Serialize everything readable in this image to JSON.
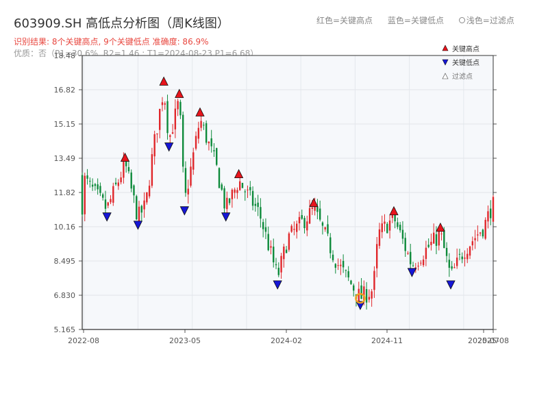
{
  "header": {
    "title": "603909.SH 高低点分析图（周K线图）",
    "result_line": "识别结果: 8个关键高点, 9个关键低点   准确度: 86.9%",
    "params_line": "优质：否（P1=30.6%, R2=1.46 ; T1=2024-08-23 P1=6.68）",
    "legend_high": "红色=关键高点",
    "legend_low": "蓝色=关键低点",
    "legend_filtered": "浅色=过滤点"
  },
  "chart_data": {
    "type": "candlestick",
    "ylim": [
      5.165,
      18.48
    ],
    "yticks": [
      "5.165",
      "6.830",
      "8.495",
      "10.16",
      "11.82",
      "13.49",
      "15.15",
      "16.82",
      "18.48"
    ],
    "xticks": [
      "2022-08",
      "2023-05",
      "2024-02",
      "2024-11",
      "2025-07",
      "2025-08"
    ],
    "x_range": [
      "2022-08-01",
      "2025-08-18"
    ],
    "legend": [
      "关键高点",
      "关键低点",
      "过滤点"
    ],
    "legend_position": "top-right",
    "colors": {
      "up": "#e0262a",
      "down": "#0d8a3a",
      "high_marker": "#e8141c",
      "low_marker": "#1616d6",
      "highlight": "#f0a020"
    },
    "price_anchors": [
      {
        "date": "2022-08-05",
        "price": 12.5
      },
      {
        "date": "2022-10-07",
        "price": 11.0
      },
      {
        "date": "2022-11-25",
        "price": 13.2
      },
      {
        "date": "2022-12-30",
        "price": 10.6
      },
      {
        "date": "2023-01-20",
        "price": 11.2
      },
      {
        "date": "2023-02-10",
        "price": 14.0
      },
      {
        "date": "2023-03-10",
        "price": 16.9
      },
      {
        "date": "2023-03-24",
        "price": 14.4
      },
      {
        "date": "2023-04-21",
        "price": 16.3
      },
      {
        "date": "2023-05-05",
        "price": 11.3
      },
      {
        "date": "2023-06-16",
        "price": 15.4
      },
      {
        "date": "2023-07-28",
        "price": 13.2
      },
      {
        "date": "2023-08-25",
        "price": 11.0
      },
      {
        "date": "2023-09-29",
        "price": 12.4
      },
      {
        "date": "2023-11-24",
        "price": 10.8
      },
      {
        "date": "2024-01-12",
        "price": 7.7
      },
      {
        "date": "2024-02-09",
        "price": 9.6
      },
      {
        "date": "2024-04-19",
        "price": 11.0
      },
      {
        "date": "2024-06-21",
        "price": 8.4
      },
      {
        "date": "2024-08-23",
        "price": 6.7
      },
      {
        "date": "2024-09-27",
        "price": 7.1
      },
      {
        "date": "2024-10-11",
        "price": 9.8
      },
      {
        "date": "2024-11-22",
        "price": 10.6
      },
      {
        "date": "2025-01-10",
        "price": 8.3
      },
      {
        "date": "2025-03-28",
        "price": 9.8
      },
      {
        "date": "2025-04-25",
        "price": 7.7
      },
      {
        "date": "2025-05-30",
        "price": 9.0
      },
      {
        "date": "2025-07-25",
        "price": 10.2
      },
      {
        "date": "2025-08-15",
        "price": 11.2
      }
    ],
    "key_highs": [
      {
        "date": "2022-11-25",
        "price": 13.2
      },
      {
        "date": "2023-03-10",
        "price": 16.9
      },
      {
        "date": "2023-04-21",
        "price": 16.3
      },
      {
        "date": "2023-06-16",
        "price": 15.4
      },
      {
        "date": "2023-09-29",
        "price": 12.4
      },
      {
        "date": "2024-04-19",
        "price": 11.0
      },
      {
        "date": "2024-11-22",
        "price": 10.6
      },
      {
        "date": "2025-03-28",
        "price": 9.8
      }
    ],
    "key_lows": [
      {
        "date": "2022-10-07",
        "price": 11.0
      },
      {
        "date": "2022-12-30",
        "price": 10.6
      },
      {
        "date": "2023-03-24",
        "price": 14.4
      },
      {
        "date": "2023-05-05",
        "price": 11.3
      },
      {
        "date": "2023-08-25",
        "price": 11.0
      },
      {
        "date": "2024-01-12",
        "price": 7.7
      },
      {
        "date": "2024-08-23",
        "price": 6.7
      },
      {
        "date": "2025-01-10",
        "price": 8.3
      },
      {
        "date": "2025-04-25",
        "price": 7.7
      }
    ],
    "highlight_point": {
      "date": "2024-08-23",
      "price": 6.68
    }
  }
}
